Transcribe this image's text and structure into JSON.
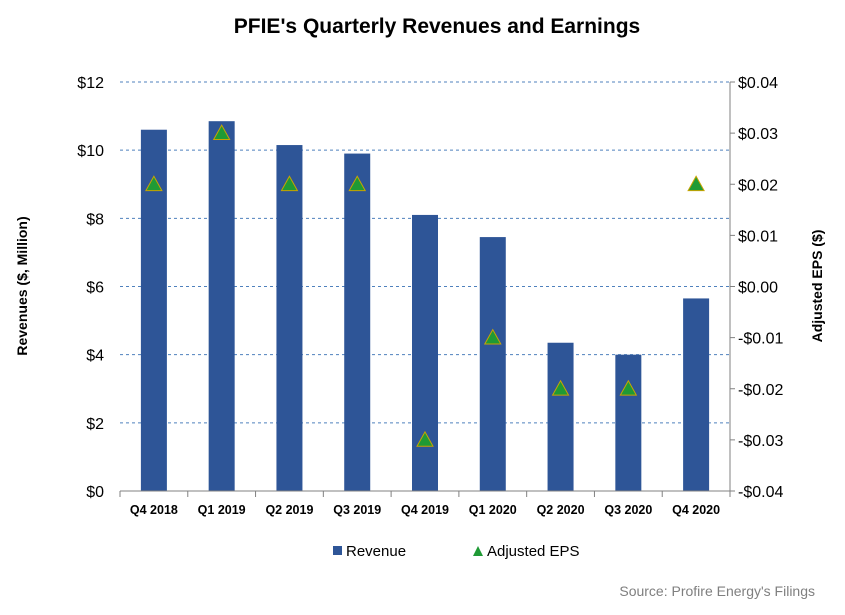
{
  "chart_data": {
    "type": "bar",
    "title": "PFIE's Quarterly Revenues and Earnings",
    "categories": [
      "Q4 2018",
      "Q1 2019",
      "Q2 2019",
      "Q3 2019",
      "Q4 2019",
      "Q1 2020",
      "Q2 2020",
      "Q3 2020",
      "Q4 2020"
    ],
    "series": [
      {
        "name": "Revenue",
        "type": "bar",
        "axis": "left",
        "color": "#2e5597",
        "values": [
          10.6,
          10.85,
          10.15,
          9.9,
          8.1,
          7.45,
          4.35,
          4.0,
          5.65
        ]
      },
      {
        "name": "Adjusted EPS",
        "type": "scatter",
        "marker": "triangle",
        "axis": "right",
        "color": "#1f9a35",
        "values": [
          0.02,
          0.03,
          0.02,
          0.02,
          -0.03,
          -0.01,
          -0.02,
          -0.02,
          0.02
        ]
      }
    ],
    "ylabel": "Revenues ($, Million)",
    "ylim": [
      0,
      12
    ],
    "yticks": [
      "$0",
      "$2",
      "$4",
      "$6",
      "$8",
      "$10",
      "$12"
    ],
    "y2label": "Adjusted EPS ($)",
    "y2lim": [
      -0.04,
      0.04
    ],
    "y2ticks": [
      "-$0.04",
      "-$0.03",
      "-$0.02",
      "-$0.01",
      "$0.00",
      "$0.01",
      "$0.02",
      "$0.03",
      "$0.04"
    ],
    "grid": true,
    "legend_position": "bottom",
    "source": "Source: Profire Energy's Filings"
  }
}
